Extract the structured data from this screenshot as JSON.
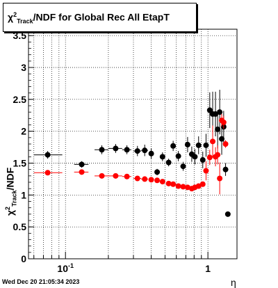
{
  "title_parts": {
    "chi": "χ",
    "sup": "2",
    "sub": "Track",
    "rest": "/NDF for Global Rec All EtapT"
  },
  "ylabel_parts": {
    "chi": "χ",
    "sup": "2",
    "sub": "Track",
    "rest": "/NDF"
  },
  "xlabel": "η",
  "timestamp": "Wed Dec 20 21:05:34 2023",
  "colors": {
    "series_black": "#000000",
    "series_red": "#ff0000",
    "grid": "#000000"
  },
  "chart_data": {
    "type": "scatter",
    "title": "χ²Track/NDF for Global Rec All EtapT",
    "xlabel": "η",
    "ylabel": "χ²Track/NDF",
    "xscale": "log",
    "xlim": [
      0.055,
      1.6
    ],
    "ylim": [
      0,
      3.6
    ],
    "grid": true,
    "x_tick_labels": [
      {
        "value": 0.1,
        "base": "10",
        "exp": "-1"
      },
      {
        "value": 1,
        "base": "1",
        "exp": ""
      }
    ],
    "y_ticks": [
      0,
      0.5,
      1,
      1.5,
      2,
      2.5,
      3,
      3.5
    ],
    "y_tick_labels": [
      "0",
      "0.5",
      "1",
      "1.5",
      "2",
      "2.5",
      "3",
      "3.5"
    ],
    "series": [
      {
        "color": "#000000",
        "points": [
          {
            "x": 0.075,
            "y": 1.63,
            "xerr": [
              0.06,
              0.095
            ],
            "yerr": 0.06
          },
          {
            "x": 0.13,
            "y": 1.48,
            "xerr": [
              0.115,
              0.145
            ],
            "yerr": 0.05
          },
          {
            "x": 0.18,
            "y": 1.71,
            "xerr": [
              0.16,
              0.2
            ],
            "yerr": 0.07
          },
          {
            "x": 0.225,
            "y": 1.73,
            "xerr": [
              0.2,
              0.25
            ],
            "yerr": 0.07
          },
          {
            "x": 0.27,
            "y": 1.71,
            "xerr": [
              0.25,
              0.29
            ],
            "yerr": 0.07
          },
          {
            "x": 0.32,
            "y": 1.69,
            "xerr": [
              0.3,
              0.34
            ],
            "yerr": 0.08
          },
          {
            "x": 0.36,
            "y": 1.7,
            "xerr": [
              0.34,
              0.38
            ],
            "yerr": 0.09
          },
          {
            "x": 0.4,
            "y": 1.65,
            "xerr": [
              0.385,
              0.415
            ],
            "yerr": 0.08
          },
          {
            "x": 0.44,
            "y": 1.36,
            "xerr": [
              0.43,
              0.45
            ],
            "yerr": 0.05
          },
          {
            "x": 0.48,
            "y": 1.6,
            "xerr": [
              0.47,
              0.49
            ],
            "yerr": 0.07
          },
          {
            "x": 0.53,
            "y": 1.51,
            "xerr": [
              0.52,
              0.54
            ],
            "yerr": 0.06
          },
          {
            "x": 0.57,
            "y": 1.77,
            "xerr": [
              0.56,
              0.58
            ],
            "yerr": 0.08
          },
          {
            "x": 0.62,
            "y": 1.61,
            "xerr": [
              0.61,
              0.63
            ],
            "yerr": 0.08
          },
          {
            "x": 0.67,
            "y": 1.45,
            "xerr": [
              0.66,
              0.68
            ],
            "yerr": 0.07
          },
          {
            "x": 0.72,
            "y": 1.79,
            "xerr": [
              0.71,
              0.73
            ],
            "yerr": 0.12
          },
          {
            "x": 0.77,
            "y": 1.64,
            "xerr": [
              0.76,
              0.78
            ],
            "yerr": 0.12
          },
          {
            "x": 0.81,
            "y": 1.6,
            "xerr": [
              0.8,
              0.82
            ],
            "yerr": 0.12
          },
          {
            "x": 0.86,
            "y": 1.78,
            "xerr": [
              0.85,
              0.87
            ],
            "yerr": 0.14
          },
          {
            "x": 0.92,
            "y": 1.55,
            "xerr": [
              0.91,
              0.93
            ],
            "yerr": 0.13
          },
          {
            "x": 0.97,
            "y": 1.78,
            "xerr": [
              0.96,
              0.98
            ],
            "yerr": 0.18
          },
          {
            "x": 1.03,
            "y": 2.33,
            "xerr": [
              1.02,
              1.04
            ],
            "yerr": 0.28
          },
          {
            "x": 1.08,
            "y": 2.27,
            "xerr": [
              1.07,
              1.09
            ],
            "yerr": 0.35
          },
          {
            "x": 1.13,
            "y": 2.27,
            "xerr": [
              1.12,
              1.14
            ],
            "yerr": 0.35
          },
          {
            "x": 1.17,
            "y": 2.03,
            "xerr": [
              1.16,
              1.18
            ],
            "yerr": 0.3
          },
          {
            "x": 1.21,
            "y": 2.3,
            "xerr": [
              1.2,
              1.22
            ],
            "yerr": 0.35
          },
          {
            "x": 1.25,
            "y": 1.88,
            "xerr": [
              1.24,
              1.26
            ],
            "yerr": 0.25
          },
          {
            "x": 1.29,
            "y": 2.07,
            "xerr": [
              1.28,
              1.3
            ],
            "yerr": 0.25
          },
          {
            "x": 1.33,
            "y": 1.4,
            "xerr": [
              1.32,
              1.34
            ],
            "yerr": 0.1
          },
          {
            "x": 1.38,
            "y": 0.7,
            "xerr": [
              1.37,
              1.39
            ],
            "yerr": 0.03
          }
        ]
      },
      {
        "color": "#ff0000",
        "points": [
          {
            "x": 0.075,
            "y": 1.35,
            "xerr": [
              0.06,
              0.095
            ],
            "yerr": 0.02
          },
          {
            "x": 0.13,
            "y": 1.36,
            "xerr": [
              0.115,
              0.145
            ],
            "yerr": 0.02
          },
          {
            "x": 0.18,
            "y": 1.3,
            "xerr": [
              0.16,
              0.2
            ],
            "yerr": 0.02
          },
          {
            "x": 0.225,
            "y": 1.3,
            "xerr": [
              0.2,
              0.25
            ],
            "yerr": 0.02
          },
          {
            "x": 0.27,
            "y": 1.29,
            "xerr": [
              0.25,
              0.29
            ],
            "yerr": 0.02
          },
          {
            "x": 0.32,
            "y": 1.26,
            "xerr": [
              0.3,
              0.34
            ],
            "yerr": 0.02
          },
          {
            "x": 0.36,
            "y": 1.25,
            "xerr": [
              0.34,
              0.38
            ],
            "yerr": 0.02
          },
          {
            "x": 0.4,
            "y": 1.24,
            "xerr": [
              0.385,
              0.415
            ],
            "yerr": 0.02
          },
          {
            "x": 0.44,
            "y": 1.23,
            "xerr": [
              0.43,
              0.45
            ],
            "yerr": 0.02
          },
          {
            "x": 0.48,
            "y": 1.21,
            "xerr": [
              0.47,
              0.49
            ],
            "yerr": 0.02
          },
          {
            "x": 0.53,
            "y": 1.18,
            "xerr": [
              0.52,
              0.54
            ],
            "yerr": 0.02
          },
          {
            "x": 0.57,
            "y": 1.17,
            "xerr": [
              0.56,
              0.58
            ],
            "yerr": 0.02
          },
          {
            "x": 0.62,
            "y": 1.14,
            "xerr": [
              0.61,
              0.63
            ],
            "yerr": 0.02
          },
          {
            "x": 0.67,
            "y": 1.13,
            "xerr": [
              0.66,
              0.68
            ],
            "yerr": 0.02
          },
          {
            "x": 0.72,
            "y": 1.12,
            "xerr": [
              0.71,
              0.73
            ],
            "yerr": 0.02
          },
          {
            "x": 0.77,
            "y": 1.1,
            "xerr": [
              0.76,
              0.78
            ],
            "yerr": 0.02
          },
          {
            "x": 0.81,
            "y": 1.12,
            "xerr": [
              0.8,
              0.82
            ],
            "yerr": 0.02
          },
          {
            "x": 0.86,
            "y": 1.14,
            "xerr": [
              0.85,
              0.87
            ],
            "yerr": 0.03
          },
          {
            "x": 0.92,
            "y": 1.17,
            "xerr": [
              0.91,
              0.93
            ],
            "yerr": 0.04
          },
          {
            "x": 0.97,
            "y": 1.38,
            "xerr": [
              0.96,
              0.98
            ],
            "yerr": 0.15
          },
          {
            "x": 1.03,
            "y": 1.59,
            "xerr": [
              1.02,
              1.04
            ],
            "yerr": 0.12
          },
          {
            "x": 1.08,
            "y": 1.84,
            "xerr": [
              1.07,
              1.09
            ],
            "yerr": 0.25
          },
          {
            "x": 1.13,
            "y": 1.6,
            "xerr": [
              1.12,
              1.14
            ],
            "yerr": 0.15
          },
          {
            "x": 1.17,
            "y": 1.63,
            "xerr": [
              1.16,
              1.18
            ],
            "yerr": 0.15
          },
          {
            "x": 1.21,
            "y": 1.26,
            "xerr": [
              1.2,
              1.22
            ],
            "yerr": 0.25
          },
          {
            "x": 1.25,
            "y": 2.17,
            "xerr": [
              1.24,
              1.26
            ],
            "yerr": 0.1
          },
          {
            "x": 1.29,
            "y": 2.14,
            "xerr": [
              1.28,
              1.3
            ],
            "yerr": 0.1
          },
          {
            "x": 1.33,
            "y": 1.8,
            "xerr": [
              1.32,
              1.34
            ],
            "yerr": 0.06
          }
        ]
      }
    ]
  }
}
